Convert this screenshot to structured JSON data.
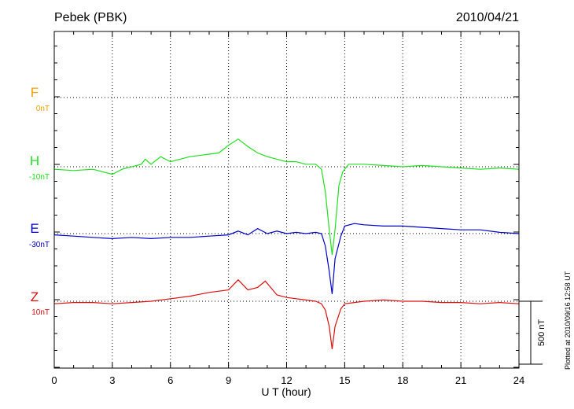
{
  "header": {
    "station": "Pebek (PBK)",
    "date": "2010/04/21"
  },
  "footer": {
    "plotted_note": "Plotted at 2010/09/16 12:58 UT"
  },
  "colors": {
    "F": "#f0a000",
    "H": "#20e020",
    "E": "#0000cc",
    "Z": "#dd1010",
    "axis": "#000000"
  },
  "chart_data": {
    "type": "line",
    "title": "Pebek (PBK)",
    "xlabel": "U T (hour)",
    "xlim": [
      0,
      24
    ],
    "xticks": [
      0,
      3,
      6,
      9,
      12,
      15,
      18,
      21,
      24
    ],
    "x_tick_labels": [
      "0",
      "3",
      "6",
      "9",
      "12",
      "15",
      "18",
      "21",
      "24"
    ],
    "grid": true,
    "scale_bar_label": "500 nT",
    "scale_bar_nT": 500,
    "series": [
      {
        "name": "F",
        "baseline_label": "0nT",
        "baseline_nT": 0,
        "color": "#f0a000",
        "points": []
      },
      {
        "name": "H",
        "baseline_label": "-10nT",
        "baseline_nT": -10,
        "color": "#20e020",
        "points": [
          [
            0,
            -20
          ],
          [
            1,
            -30
          ],
          [
            2,
            -20
          ],
          [
            3,
            -60
          ],
          [
            3.5,
            -20
          ],
          [
            4.5,
            20
          ],
          [
            4.7,
            60
          ],
          [
            5,
            20
          ],
          [
            5.5,
            80
          ],
          [
            6,
            40
          ],
          [
            7,
            80
          ],
          [
            8,
            100
          ],
          [
            8.5,
            110
          ],
          [
            9,
            170
          ],
          [
            9.5,
            220
          ],
          [
            10,
            160
          ],
          [
            10.5,
            110
          ],
          [
            11,
            80
          ],
          [
            11.5,
            60
          ],
          [
            12,
            40
          ],
          [
            12.5,
            40
          ],
          [
            13,
            20
          ],
          [
            13.5,
            20
          ],
          [
            13.8,
            -20
          ],
          [
            14,
            -200
          ],
          [
            14.2,
            -500
          ],
          [
            14.35,
            -700
          ],
          [
            14.5,
            -500
          ],
          [
            14.7,
            -150
          ],
          [
            14.9,
            -40
          ],
          [
            15.2,
            20
          ],
          [
            16,
            20
          ],
          [
            17,
            10
          ],
          [
            18,
            0
          ],
          [
            19,
            10
          ],
          [
            20,
            0
          ],
          [
            21,
            -10
          ],
          [
            22,
            -20
          ],
          [
            23,
            -10
          ],
          [
            24,
            -20
          ]
        ]
      },
      {
        "name": "E",
        "baseline_label": "-30nT",
        "baseline_nT": -30,
        "color": "#0000cc",
        "points": [
          [
            0,
            -10
          ],
          [
            1,
            -20
          ],
          [
            2,
            -30
          ],
          [
            3,
            -40
          ],
          [
            4,
            -30
          ],
          [
            5,
            -40
          ],
          [
            6,
            -30
          ],
          [
            7,
            -30
          ],
          [
            8,
            -20
          ],
          [
            9,
            -10
          ],
          [
            9.5,
            20
          ],
          [
            10,
            -10
          ],
          [
            10.5,
            40
          ],
          [
            11,
            0
          ],
          [
            11.5,
            20
          ],
          [
            12,
            0
          ],
          [
            12.5,
            10
          ],
          [
            13,
            0
          ],
          [
            13.5,
            10
          ],
          [
            13.8,
            0
          ],
          [
            14,
            -100
          ],
          [
            14.2,
            -300
          ],
          [
            14.35,
            -480
          ],
          [
            14.5,
            -200
          ],
          [
            14.8,
            -20
          ],
          [
            15,
            60
          ],
          [
            15.5,
            80
          ],
          [
            16,
            70
          ],
          [
            17,
            60
          ],
          [
            18,
            60
          ],
          [
            19,
            50
          ],
          [
            20,
            40
          ],
          [
            21,
            30
          ],
          [
            22,
            30
          ],
          [
            23,
            10
          ],
          [
            24,
            0
          ]
        ]
      },
      {
        "name": "Z",
        "baseline_label": "10nT",
        "baseline_nT": 10,
        "color": "#dd1010",
        "points": [
          [
            0,
            -20
          ],
          [
            1,
            -10
          ],
          [
            2,
            -10
          ],
          [
            3,
            -20
          ],
          [
            4,
            -10
          ],
          [
            5,
            0
          ],
          [
            6,
            20
          ],
          [
            7,
            40
          ],
          [
            8,
            70
          ],
          [
            9,
            90
          ],
          [
            9.5,
            170
          ],
          [
            10,
            90
          ],
          [
            10.5,
            110
          ],
          [
            10.9,
            160
          ],
          [
            11.5,
            50
          ],
          [
            12,
            30
          ],
          [
            12.5,
            20
          ],
          [
            13,
            10
          ],
          [
            13.5,
            0
          ],
          [
            13.8,
            -20
          ],
          [
            14,
            -70
          ],
          [
            14.2,
            -200
          ],
          [
            14.35,
            -380
          ],
          [
            14.5,
            -200
          ],
          [
            14.8,
            -60
          ],
          [
            15,
            -20
          ],
          [
            15.5,
            -10
          ],
          [
            16,
            0
          ],
          [
            17,
            10
          ],
          [
            18,
            0
          ],
          [
            19,
            0
          ],
          [
            20,
            -10
          ],
          [
            21,
            -10
          ],
          [
            22,
            -20
          ],
          [
            23,
            -10
          ],
          [
            24,
            -20
          ]
        ]
      }
    ]
  }
}
